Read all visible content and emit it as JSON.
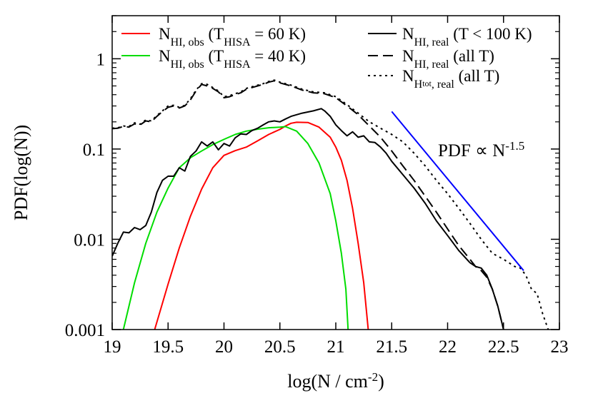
{
  "chart_data": {
    "type": "line",
    "xlabel": {
      "text": "log(N / cm",
      "sup": "-2",
      "close": ")"
    },
    "ylabel": "PDF(log(N))",
    "xlim": [
      19,
      23
    ],
    "ylim": [
      0.001,
      3
    ],
    "ylog": true,
    "grid": false,
    "legend_position": "top",
    "x_ticks": [
      "19",
      "19.5",
      "20",
      "20.5",
      "21",
      "21.5",
      "22",
      "22.5",
      "23"
    ],
    "y_ticks": [
      "0.001",
      "0.01",
      "0.1",
      "1"
    ],
    "annotation": {
      "text": "PDF ∝ N",
      "sup": "-1.5"
    },
    "series": [
      {
        "legend": {
          "main": "N",
          "sub": "HI, obs",
          "rest": " (T",
          "sub2": "HISA",
          "rest2": " = 60 K)"
        },
        "color": "#ff0000",
        "dash": "solid",
        "points": [
          [
            19.38,
            0.001
          ],
          [
            19.5,
            0.0032
          ],
          [
            19.6,
            0.008
          ],
          [
            19.7,
            0.018
          ],
          [
            19.8,
            0.036
          ],
          [
            19.9,
            0.062
          ],
          [
            20.0,
            0.085
          ],
          [
            20.1,
            0.096
          ],
          [
            20.2,
            0.105
          ],
          [
            20.3,
            0.123
          ],
          [
            20.4,
            0.145
          ],
          [
            20.5,
            0.165
          ],
          [
            20.55,
            0.18
          ],
          [
            20.6,
            0.193
          ],
          [
            20.65,
            0.198
          ],
          [
            20.75,
            0.197
          ],
          [
            20.85,
            0.175
          ],
          [
            20.95,
            0.135
          ],
          [
            21.0,
            0.105
          ],
          [
            21.05,
            0.075
          ],
          [
            21.1,
            0.045
          ],
          [
            21.15,
            0.022
          ],
          [
            21.2,
            0.009
          ],
          [
            21.25,
            0.0033
          ],
          [
            21.29,
            0.001
          ]
        ]
      },
      {
        "legend": {
          "main": "N",
          "sub": "HI, obs",
          "rest": " (T",
          "sub2": "HISA",
          "rest2": " = 40 K)"
        },
        "color": "#00dd00",
        "dash": "solid",
        "points": [
          [
            19.1,
            0.001
          ],
          [
            19.2,
            0.0033
          ],
          [
            19.3,
            0.009
          ],
          [
            19.4,
            0.02
          ],
          [
            19.5,
            0.037
          ],
          [
            19.6,
            0.062
          ],
          [
            19.7,
            0.08
          ],
          [
            19.8,
            0.095
          ],
          [
            19.9,
            0.112
          ],
          [
            20.0,
            0.128
          ],
          [
            20.1,
            0.145
          ],
          [
            20.2,
            0.158
          ],
          [
            20.3,
            0.166
          ],
          [
            20.4,
            0.172
          ],
          [
            20.5,
            0.175
          ],
          [
            20.55,
            0.177
          ],
          [
            20.65,
            0.158
          ],
          [
            20.75,
            0.115
          ],
          [
            20.85,
            0.07
          ],
          [
            20.95,
            0.032
          ],
          [
            21.0,
            0.016
          ],
          [
            21.05,
            0.007
          ],
          [
            21.09,
            0.0028
          ],
          [
            21.11,
            0.001
          ]
        ]
      },
      {
        "legend": {
          "main": "N",
          "sub": "HI, real",
          "rest": " (T < 100 K)",
          "sub2": "",
          "rest2": ""
        },
        "color": "#000000",
        "dash": "solid",
        "points": [
          [
            19.0,
            0.0065
          ],
          [
            19.05,
            0.009
          ],
          [
            19.1,
            0.012
          ],
          [
            19.15,
            0.0118
          ],
          [
            19.2,
            0.0135
          ],
          [
            19.25,
            0.0128
          ],
          [
            19.3,
            0.0142
          ],
          [
            19.35,
            0.02
          ],
          [
            19.4,
            0.033
          ],
          [
            19.45,
            0.045
          ],
          [
            19.5,
            0.05
          ],
          [
            19.55,
            0.05
          ],
          [
            19.6,
            0.062
          ],
          [
            19.65,
            0.057
          ],
          [
            19.7,
            0.083
          ],
          [
            19.75,
            0.095
          ],
          [
            19.8,
            0.12
          ],
          [
            19.85,
            0.108
          ],
          [
            19.9,
            0.12
          ],
          [
            19.95,
            0.098
          ],
          [
            20.0,
            0.115
          ],
          [
            20.05,
            0.108
          ],
          [
            20.1,
            0.133
          ],
          [
            20.15,
            0.147
          ],
          [
            20.2,
            0.145
          ],
          [
            20.25,
            0.16
          ],
          [
            20.3,
            0.17
          ],
          [
            20.35,
            0.185
          ],
          [
            20.4,
            0.2
          ],
          [
            20.45,
            0.205
          ],
          [
            20.5,
            0.2
          ],
          [
            20.55,
            0.215
          ],
          [
            20.6,
            0.23
          ],
          [
            20.7,
            0.25
          ],
          [
            20.8,
            0.265
          ],
          [
            20.87,
            0.28
          ],
          [
            20.9,
            0.265
          ],
          [
            20.95,
            0.23
          ],
          [
            21.0,
            0.185
          ],
          [
            21.05,
            0.16
          ],
          [
            21.1,
            0.14
          ],
          [
            21.15,
            0.155
          ],
          [
            21.2,
            0.135
          ],
          [
            21.25,
            0.14
          ],
          [
            21.3,
            0.12
          ],
          [
            21.35,
            0.118
          ],
          [
            21.4,
            0.105
          ],
          [
            21.45,
            0.09
          ],
          [
            21.5,
            0.073
          ],
          [
            21.6,
            0.052
          ],
          [
            21.7,
            0.037
          ],
          [
            21.8,
            0.025
          ],
          [
            21.9,
            0.016
          ],
          [
            22.0,
            0.011
          ],
          [
            22.1,
            0.0075
          ],
          [
            22.2,
            0.0055
          ],
          [
            22.25,
            0.005
          ],
          [
            22.3,
            0.0048
          ],
          [
            22.35,
            0.004
          ],
          [
            22.4,
            0.0028
          ],
          [
            22.45,
            0.0018
          ],
          [
            22.5,
            0.001
          ]
        ]
      },
      {
        "legend": {
          "main": "N",
          "sub": "HI, real",
          "rest": " (all T)",
          "sub2": "",
          "rest2": ""
        },
        "color": "#000000",
        "dash": "long",
        "points": [
          [
            19.0,
            0.168
          ],
          [
            19.05,
            0.17
          ],
          [
            19.1,
            0.178
          ],
          [
            19.15,
            0.175
          ],
          [
            19.2,
            0.19
          ],
          [
            19.25,
            0.185
          ],
          [
            19.3,
            0.205
          ],
          [
            19.35,
            0.2
          ],
          [
            19.4,
            0.23
          ],
          [
            19.45,
            0.26
          ],
          [
            19.5,
            0.29
          ],
          [
            19.55,
            0.3
          ],
          [
            19.6,
            0.285
          ],
          [
            19.65,
            0.3
          ],
          [
            19.7,
            0.35
          ],
          [
            19.75,
            0.44
          ],
          [
            19.8,
            0.52
          ],
          [
            19.85,
            0.5
          ],
          [
            19.9,
            0.47
          ],
          [
            19.95,
            0.43
          ],
          [
            20.0,
            0.37
          ],
          [
            20.05,
            0.38
          ],
          [
            20.1,
            0.4
          ],
          [
            20.15,
            0.42
          ],
          [
            20.2,
            0.46
          ],
          [
            20.3,
            0.5
          ],
          [
            20.35,
            0.52
          ],
          [
            20.4,
            0.55
          ],
          [
            20.45,
            0.57
          ],
          [
            20.5,
            0.54
          ],
          [
            20.6,
            0.5
          ],
          [
            20.7,
            0.45
          ],
          [
            20.8,
            0.42
          ],
          [
            20.9,
            0.41
          ],
          [
            21.0,
            0.37
          ],
          [
            21.1,
            0.3
          ],
          [
            21.2,
            0.24
          ],
          [
            21.3,
            0.18
          ],
          [
            21.4,
            0.135
          ],
          [
            21.5,
            0.095
          ],
          [
            21.6,
            0.065
          ],
          [
            21.7,
            0.045
          ],
          [
            21.8,
            0.03
          ],
          [
            21.9,
            0.02
          ],
          [
            22.0,
            0.013
          ],
          [
            22.1,
            0.0085
          ],
          [
            22.2,
            0.006
          ],
          [
            22.25,
            0.005
          ],
          [
            22.3,
            0.0045
          ],
          [
            22.35,
            0.0038
          ],
          [
            22.4,
            0.0028
          ],
          [
            22.45,
            0.0018
          ],
          [
            22.5,
            0.001
          ]
        ]
      },
      {
        "legend": {
          "main": "N",
          "sub": "H",
          "rest": ", real (all T)",
          "sub2": "tot",
          "rest2": ""
        },
        "color": "#000000",
        "dash": "dot",
        "points": [
          [
            19.0,
            0.17
          ],
          [
            19.05,
            0.172
          ],
          [
            19.1,
            0.18
          ],
          [
            19.15,
            0.178
          ],
          [
            19.2,
            0.195
          ],
          [
            19.25,
            0.188
          ],
          [
            19.3,
            0.21
          ],
          [
            19.35,
            0.205
          ],
          [
            19.4,
            0.235
          ],
          [
            19.45,
            0.265
          ],
          [
            19.5,
            0.3
          ],
          [
            19.55,
            0.305
          ],
          [
            19.6,
            0.29
          ],
          [
            19.65,
            0.305
          ],
          [
            19.7,
            0.36
          ],
          [
            19.75,
            0.45
          ],
          [
            19.8,
            0.53
          ],
          [
            19.85,
            0.52
          ],
          [
            19.9,
            0.48
          ],
          [
            19.95,
            0.44
          ],
          [
            20.0,
            0.38
          ],
          [
            20.05,
            0.39
          ],
          [
            20.1,
            0.41
          ],
          [
            20.15,
            0.43
          ],
          [
            20.2,
            0.47
          ],
          [
            20.3,
            0.51
          ],
          [
            20.35,
            0.53
          ],
          [
            20.4,
            0.56
          ],
          [
            20.45,
            0.58
          ],
          [
            20.5,
            0.55
          ],
          [
            20.6,
            0.51
          ],
          [
            20.7,
            0.46
          ],
          [
            20.8,
            0.43
          ],
          [
            20.9,
            0.42
          ],
          [
            21.0,
            0.38
          ],
          [
            21.1,
            0.31
          ],
          [
            21.2,
            0.25
          ],
          [
            21.3,
            0.2
          ],
          [
            21.4,
            0.17
          ],
          [
            21.5,
            0.145
          ],
          [
            21.6,
            0.12
          ],
          [
            21.7,
            0.09
          ],
          [
            21.8,
            0.065
          ],
          [
            21.9,
            0.045
          ],
          [
            22.0,
            0.032
          ],
          [
            22.1,
            0.022
          ],
          [
            22.2,
            0.015
          ],
          [
            22.3,
            0.01
          ],
          [
            22.4,
            0.007
          ],
          [
            22.5,
            0.006
          ],
          [
            22.6,
            0.005
          ],
          [
            22.65,
            0.0048
          ],
          [
            22.7,
            0.004
          ],
          [
            22.75,
            0.0028
          ],
          [
            22.8,
            0.0025
          ],
          [
            22.85,
            0.0015
          ],
          [
            22.9,
            0.001
          ]
        ]
      },
      {
        "legend": null,
        "color": "#0000ff",
        "dash": "solid",
        "points": [
          [
            21.5,
            0.26
          ],
          [
            22.68,
            0.0045
          ]
        ]
      }
    ]
  }
}
